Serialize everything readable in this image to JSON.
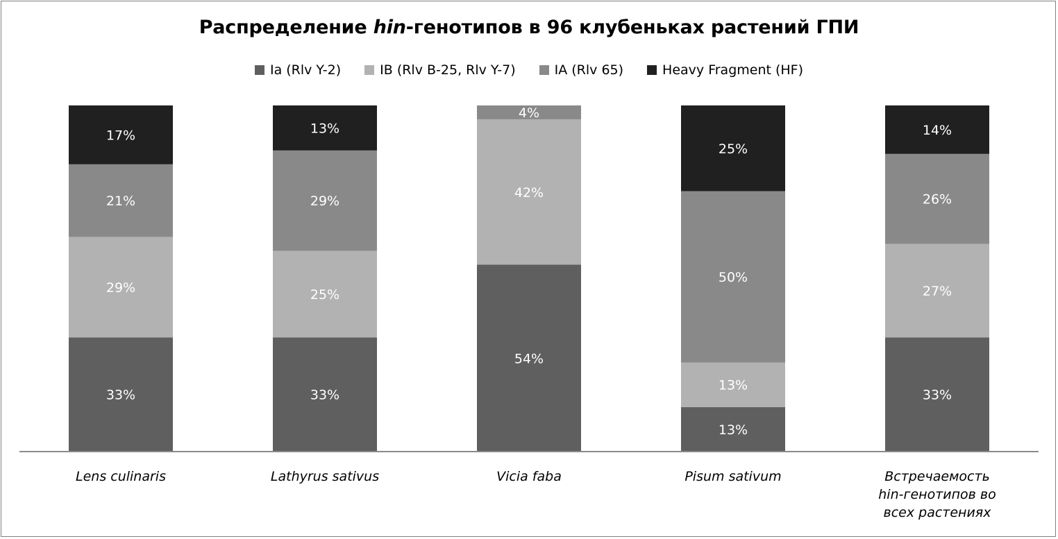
{
  "title": {
    "before": "Распределение ",
    "emph": "hin",
    "after": "-генотипов в 96 клубеньках растений ГПИ"
  },
  "chart_data": {
    "type": "bar",
    "stacked": true,
    "normalized_percent": true,
    "legend_position": "top",
    "grid": false,
    "ylim": [
      0,
      100
    ],
    "categories": [
      [
        "Lens culinaris"
      ],
      [
        "Lathyrus sativus"
      ],
      [
        "Vicia faba"
      ],
      [
        "Pisum sativum"
      ],
      [
        "Встречаемость",
        "hin-генотипов во",
        "всех растениях"
      ]
    ],
    "series": [
      {
        "name": "Ia (Rlv Y-2)",
        "color": "#5f5f5f",
        "label_color": "#ffffff",
        "values": [
          33,
          33,
          54,
          13,
          33
        ]
      },
      {
        "name": "IB (Rlv B-25, Rlv Y-7)",
        "color": "#b2b2b2",
        "label_color": "#ffffff",
        "values": [
          29,
          25,
          42,
          13,
          27
        ]
      },
      {
        "name": "IA (Rlv 65)",
        "color": "#898989",
        "label_color": "#ffffff",
        "values": [
          21,
          29,
          4,
          50,
          26
        ]
      },
      {
        "name": "Heavy Fragment (HF)",
        "color": "#202020",
        "label_color": "#ffffff",
        "values": [
          17,
          13,
          0,
          25,
          14
        ]
      }
    ],
    "value_suffix": "%"
  }
}
